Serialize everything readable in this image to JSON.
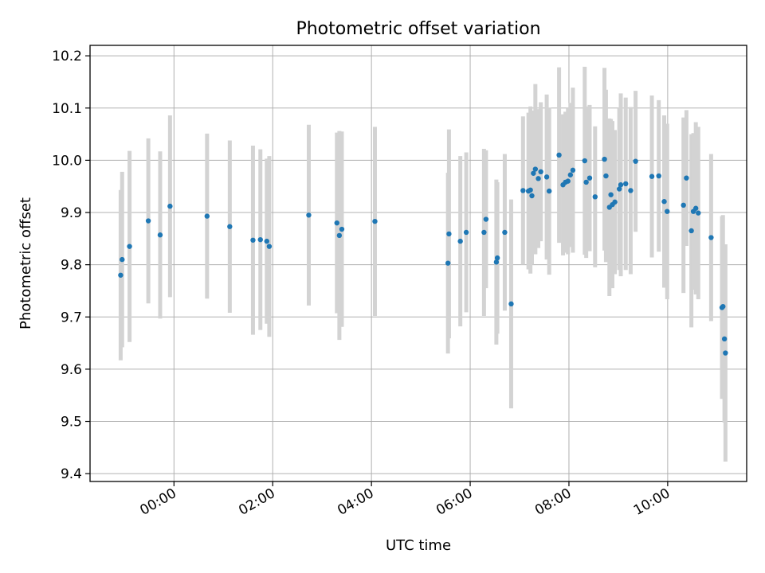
{
  "chart_data": {
    "type": "scatter",
    "title": "Photometric offset variation",
    "xlabel": "UTC time",
    "ylabel": "Photometric offset",
    "x_unit": "hours since 00:00 UTC",
    "xlim": [
      -1.7,
      11.6
    ],
    "ylim": [
      9.385,
      10.22
    ],
    "grid": true,
    "x_ticks": [
      {
        "value": 0,
        "label": "00:00"
      },
      {
        "value": 2,
        "label": "02:00"
      },
      {
        "value": 4,
        "label": "04:00"
      },
      {
        "value": 6,
        "label": "06:00"
      },
      {
        "value": 8,
        "label": "08:00"
      },
      {
        "value": 10,
        "label": "10:00"
      }
    ],
    "y_ticks": [
      {
        "value": 9.4,
        "label": "9.4"
      },
      {
        "value": 9.5,
        "label": "9.5"
      },
      {
        "value": 9.6,
        "label": "9.6"
      },
      {
        "value": 9.7,
        "label": "9.7"
      },
      {
        "value": 9.8,
        "label": "9.8"
      },
      {
        "value": 9.9,
        "label": "9.9"
      },
      {
        "value": 10.0,
        "label": "10.0"
      },
      {
        "value": 10.1,
        "label": "10.1"
      },
      {
        "value": 10.2,
        "label": "10.2"
      }
    ],
    "marker_color": "#1f77b4",
    "errorbar_color": "#d3d3d3",
    "series": [
      {
        "name": "offset",
        "x": [
          -1.08,
          -1.05,
          -0.9,
          -0.52,
          -0.28,
          -0.08,
          0.67,
          1.13,
          1.6,
          1.75,
          1.88,
          1.93,
          2.73,
          3.3,
          3.35,
          3.4,
          4.07,
          5.55,
          5.57,
          5.8,
          5.92,
          6.28,
          6.32,
          6.53,
          6.55,
          6.7,
          6.83,
          7.07,
          7.18,
          7.22,
          7.25,
          7.28,
          7.32,
          7.38,
          7.43,
          7.55,
          7.6,
          7.8,
          7.88,
          7.93,
          7.98,
          8.03,
          8.08,
          8.32,
          8.35,
          8.42,
          8.53,
          8.72,
          8.75,
          8.82,
          8.85,
          8.88,
          8.93,
          9.02,
          9.05,
          9.15,
          9.25,
          9.35,
          9.68,
          9.82,
          9.93,
          9.99,
          10.32,
          10.38,
          10.48,
          10.52,
          10.57,
          10.62,
          10.88,
          11.1,
          11.12,
          11.15,
          11.17
        ],
        "y": [
          9.78,
          9.81,
          9.835,
          9.884,
          9.857,
          9.912,
          9.893,
          9.873,
          9.847,
          9.848,
          9.845,
          9.835,
          9.895,
          9.88,
          9.856,
          9.868,
          9.883,
          9.803,
          9.859,
          9.845,
          9.862,
          9.862,
          9.887,
          9.805,
          9.813,
          9.862,
          9.725,
          9.942,
          9.941,
          9.943,
          9.932,
          9.975,
          9.983,
          9.965,
          9.978,
          9.968,
          9.941,
          10.01,
          9.953,
          9.958,
          9.96,
          9.972,
          9.981,
          9.999,
          9.958,
          9.966,
          9.93,
          10.002,
          9.97,
          9.91,
          9.934,
          9.915,
          9.92,
          9.945,
          9.953,
          9.955,
          9.942,
          9.998,
          9.969,
          9.97,
          9.921,
          9.902,
          9.914,
          9.966,
          9.865,
          9.902,
          9.908,
          9.899,
          9.852,
          9.718,
          9.72,
          9.658,
          9.631
        ],
        "error": [
          0.163,
          0.168,
          0.183,
          0.158,
          0.16,
          0.174,
          0.158,
          0.165,
          0.181,
          0.173,
          0.158,
          0.173,
          0.173,
          0.173,
          0.2,
          0.187,
          0.181,
          0.173,
          0.2,
          0.163,
          0.153,
          0.16,
          0.132,
          0.158,
          0.145,
          0.15,
          0.2,
          0.142,
          0.15,
          0.16,
          0.132,
          0.12,
          0.163,
          0.133,
          0.133,
          0.158,
          0.16,
          0.168,
          0.135,
          0.135,
          0.14,
          0.138,
          0.158,
          0.18,
          0.145,
          0.14,
          0.135,
          0.175,
          0.165,
          0.17,
          0.145,
          0.16,
          0.138,
          0.155,
          0.175,
          0.165,
          0.16,
          0.135,
          0.155,
          0.145,
          0.165,
          0.168,
          0.168,
          0.13,
          0.185,
          0.15,
          0.165,
          0.165,
          0.16,
          0.175,
          0.175,
          0.16,
          0.208
        ]
      }
    ]
  }
}
